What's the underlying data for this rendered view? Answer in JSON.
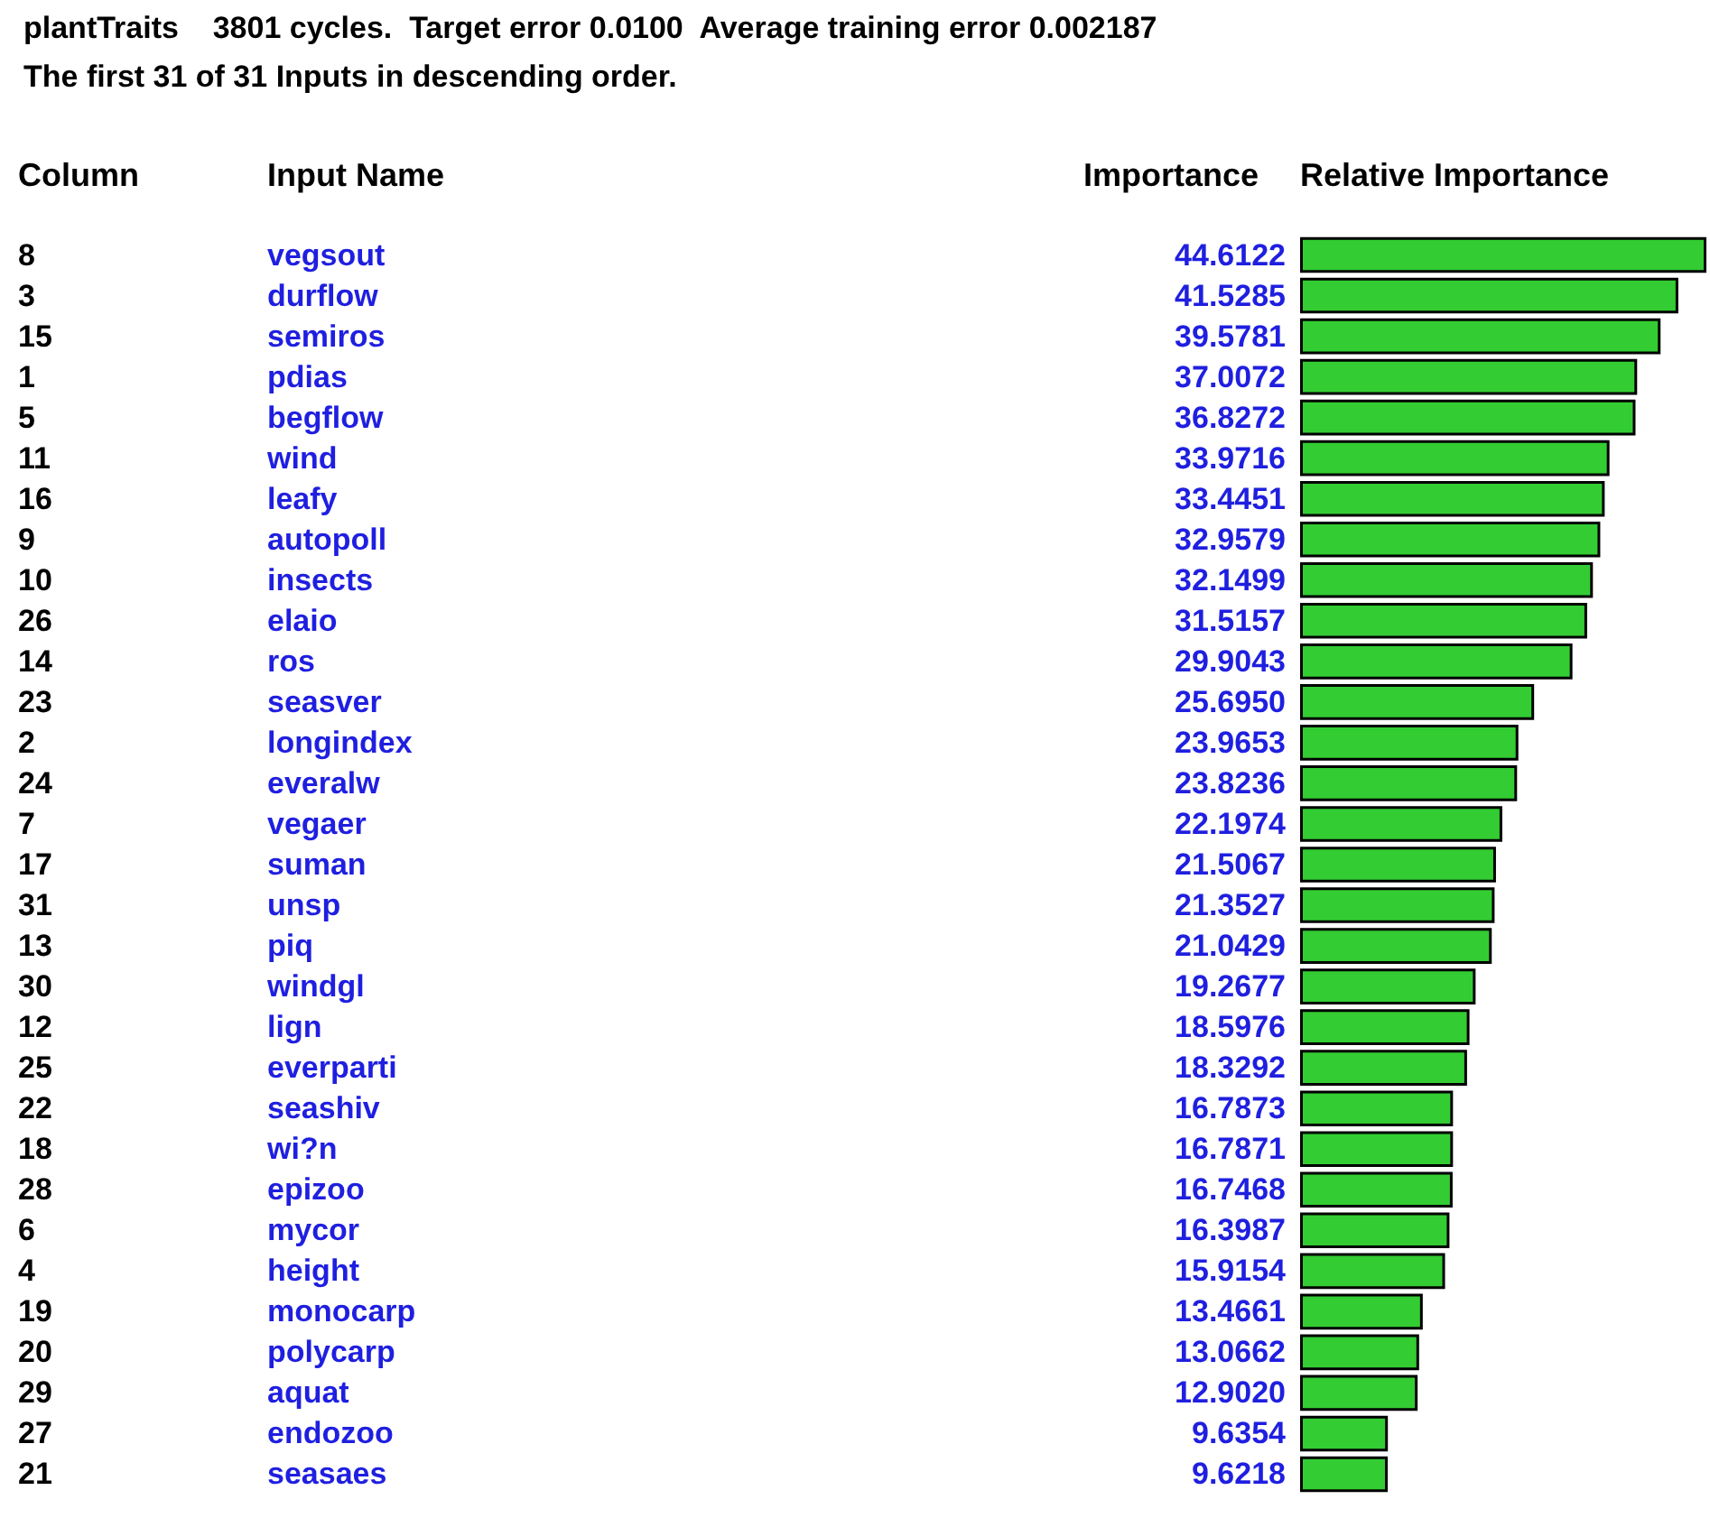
{
  "chart_data": {
    "type": "bar",
    "orientation": "horizontal",
    "title": "plantTraits    3801 cycles.  Target error 0.0100  Average training error 0.002187",
    "subtitle": "The first 31 of 31 Inputs in descending order.",
    "annotations": [
      "Column",
      "Input Name",
      "Importance",
      "Relative Importance"
    ],
    "categories": [
      "vegsout",
      "durflow",
      "semiros",
      "pdias",
      "begflow",
      "wind",
      "leafy",
      "autopoll",
      "insects",
      "elaio",
      "ros",
      "seasver",
      "longindex",
      "everalw",
      "vegaer",
      "suman",
      "unsp",
      "piq",
      "windgl",
      "lign",
      "everparti",
      "seashiv",
      "wi?n",
      "epizoo",
      "mycor",
      "height",
      "monocarp",
      "polycarp",
      "aquat",
      "endozoo",
      "seasaes"
    ],
    "y2_categories": [
      "8",
      "3",
      "15",
      "1",
      "5",
      "11",
      "16",
      "9",
      "10",
      "26",
      "14",
      "23",
      "2",
      "24",
      "7",
      "17",
      "31",
      "13",
      "30",
      "12",
      "25",
      "22",
      "18",
      "28",
      "6",
      "4",
      "19",
      "20",
      "29",
      "27",
      "21"
    ],
    "values": [
      44.6122,
      41.5285,
      39.5781,
      37.0072,
      36.8272,
      33.9716,
      33.4451,
      32.9579,
      32.1499,
      31.5157,
      29.9043,
      25.695,
      23.9653,
      23.8236,
      22.1974,
      21.5067,
      21.3527,
      21.0429,
      19.2677,
      18.5976,
      18.3292,
      16.7873,
      16.7871,
      16.7468,
      16.3987,
      15.9154,
      13.4661,
      13.0662,
      12.902,
      9.6354,
      9.6218
    ],
    "value_labels": [
      "44.6122",
      "41.5285",
      "39.5781",
      "37.0072",
      "36.8272",
      "33.9716",
      "33.4451",
      "32.9579",
      "32.1499",
      "31.5157",
      "29.9043",
      "25.6950",
      "23.9653",
      "23.8236",
      "22.1974",
      "21.5067",
      "21.3527",
      "21.0429",
      "19.2677",
      "18.5976",
      "18.3292",
      "16.7873",
      "16.7871",
      "16.7468",
      "16.3987",
      "15.9154",
      "13.4661",
      "13.0662",
      "12.9020",
      "9.6354",
      "9.6218"
    ],
    "color": "#33cc33",
    "data_labels": true
  }
}
